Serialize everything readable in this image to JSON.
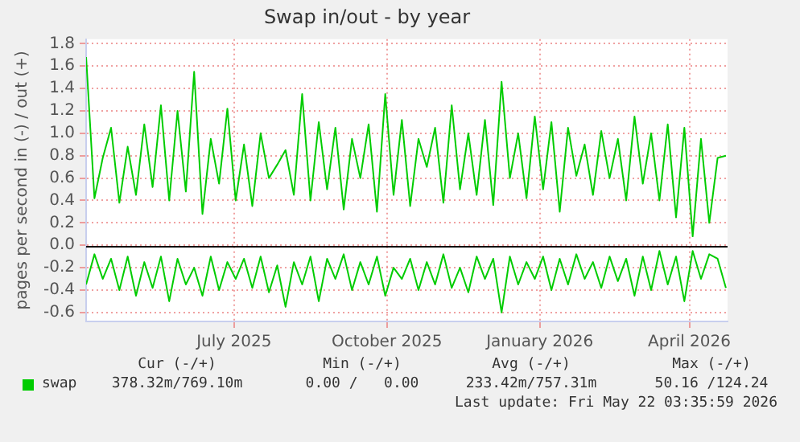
{
  "chart_data": {
    "type": "line",
    "title": "Swap in/out - by year",
    "ylabel": "pages per second in (-) / out (+)",
    "x": [
      "2025-04-03",
      "2025-04-08",
      "2025-04-13",
      "2025-04-18",
      "2025-04-23",
      "2025-04-28",
      "2025-05-03",
      "2025-05-08",
      "2025-05-13",
      "2025-05-18",
      "2025-05-23",
      "2025-05-28",
      "2025-06-02",
      "2025-06-07",
      "2025-06-12",
      "2025-06-17",
      "2025-06-22",
      "2025-06-27",
      "2025-07-02",
      "2025-07-07",
      "2025-07-12",
      "2025-07-17",
      "2025-07-22",
      "2025-07-27",
      "2025-08-01",
      "2025-08-06",
      "2025-08-11",
      "2025-08-16",
      "2025-08-21",
      "2025-08-26",
      "2025-08-31",
      "2025-09-05",
      "2025-09-10",
      "2025-09-15",
      "2025-09-20",
      "2025-09-25",
      "2025-09-30",
      "2025-10-05",
      "2025-10-10",
      "2025-10-15",
      "2025-10-20",
      "2025-10-25",
      "2025-10-30",
      "2025-11-04",
      "2025-11-09",
      "2025-11-14",
      "2025-11-19",
      "2025-11-24",
      "2025-11-29",
      "2025-12-04",
      "2025-12-09",
      "2025-12-14",
      "2025-12-19",
      "2025-12-24",
      "2025-12-29",
      "2026-01-03",
      "2026-01-08",
      "2026-01-13",
      "2026-01-18",
      "2026-01-23",
      "2026-01-28",
      "2026-02-02",
      "2026-02-07",
      "2026-02-12",
      "2026-02-17",
      "2026-02-22",
      "2026-02-27",
      "2026-03-04",
      "2026-03-09",
      "2026-03-14",
      "2026-03-19",
      "2026-03-24",
      "2026-03-29",
      "2026-04-03",
      "2026-04-08",
      "2026-04-13",
      "2026-04-18",
      "2026-04-23"
    ],
    "series": [
      {
        "name": "swap",
        "color": "#00cc00",
        "values": [
          1.68,
          0.42,
          0.78,
          1.05,
          0.38,
          0.88,
          0.45,
          1.08,
          0.52,
          1.25,
          0.4,
          1.2,
          0.48,
          1.55,
          0.28,
          0.95,
          0.55,
          1.22,
          0.4,
          0.9,
          0.35,
          1.0,
          0.6,
          0.72,
          0.85,
          0.45,
          1.35,
          0.4,
          1.1,
          0.5,
          1.05,
          0.32,
          0.95,
          0.6,
          1.08,
          0.3,
          1.35,
          0.45,
          1.12,
          0.35,
          0.95,
          0.7,
          1.05,
          0.38,
          1.25,
          0.5,
          1.0,
          0.45,
          1.12,
          0.36,
          1.46,
          0.6,
          1.0,
          0.42,
          1.15,
          0.5,
          1.1,
          0.3,
          1.05,
          0.62,
          0.9,
          0.45,
          1.02,
          0.6,
          0.95,
          0.4,
          1.15,
          0.55,
          1.0,
          0.4,
          1.08,
          0.25,
          1.05,
          0.08,
          0.95,
          0.2,
          0.78,
          0.8
        ]
      },
      {
        "color": "#00cc00",
        "values": [
          -0.35,
          -0.08,
          -0.3,
          -0.12,
          -0.4,
          -0.1,
          -0.45,
          -0.15,
          -0.38,
          -0.1,
          -0.5,
          -0.12,
          -0.35,
          -0.2,
          -0.45,
          -0.1,
          -0.4,
          -0.15,
          -0.3,
          -0.12,
          -0.38,
          -0.1,
          -0.42,
          -0.18,
          -0.55,
          -0.15,
          -0.35,
          -0.1,
          -0.5,
          -0.12,
          -0.3,
          -0.08,
          -0.4,
          -0.15,
          -0.35,
          -0.1,
          -0.45,
          -0.2,
          -0.3,
          -0.12,
          -0.4,
          -0.15,
          -0.35,
          -0.08,
          -0.38,
          -0.2,
          -0.42,
          -0.1,
          -0.3,
          -0.12,
          -0.6,
          -0.1,
          -0.35,
          -0.15,
          -0.3,
          -0.1,
          -0.4,
          -0.12,
          -0.35,
          -0.08,
          -0.3,
          -0.15,
          -0.38,
          -0.1,
          -0.32,
          -0.12,
          -0.45,
          -0.1,
          -0.4,
          -0.05,
          -0.35,
          -0.1,
          -0.5,
          -0.05,
          -0.3,
          -0.08,
          -0.12,
          -0.38
        ]
      }
    ],
    "xlim": [
      "2025-04-03",
      "2026-04-24"
    ],
    "xticks": [
      {
        "value": "2025-07-01",
        "label": "July 2025"
      },
      {
        "value": "2025-10-01",
        "label": "October 2025"
      },
      {
        "value": "2026-01-01",
        "label": "January 2026"
      },
      {
        "value": "2026-04-01",
        "label": "April 2026"
      }
    ],
    "ylim": [
      -0.68,
      1.84
    ],
    "yticks": [
      -0.6,
      -0.4,
      -0.2,
      {
        "value": 0,
        "label": "0.0"
      },
      0.2,
      0.4,
      0.6,
      0.8,
      {
        "value": 1,
        "label": "1.0"
      },
      1.2,
      1.4,
      1.6,
      1.8
    ],
    "ref_lines": [
      {
        "axis": "y",
        "value": 0,
        "color": "#000000"
      }
    ],
    "grid": true,
    "legend": "bottom",
    "marker": "none",
    "line_style": "solid",
    "annotations": [
      "Cur (-/+)",
      "Min (-/+)",
      "Avg (-/+)",
      "Max (-/+)",
      "378.32m/769.10m",
      "0.00 /   0.00",
      "233.42m/757.31m",
      "50.16 /124.24",
      "Last update: Fri May 22 03:35:59 2026"
    ]
  }
}
